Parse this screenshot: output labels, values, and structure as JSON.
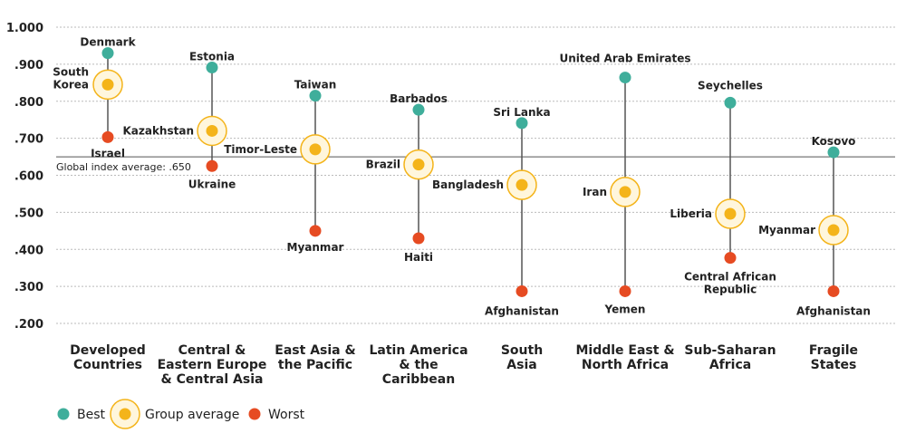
{
  "chart_data": {
    "type": "dot-range",
    "ylim": [
      0.2,
      1.0
    ],
    "yticks": [
      "1.000",
      ".900",
      ".800",
      ".700",
      ".600",
      ".500",
      ".400",
      ".300",
      ".200"
    ],
    "ytick_values": [
      1.0,
      0.9,
      0.8,
      0.7,
      0.6,
      0.5,
      0.4,
      0.3,
      0.2
    ],
    "reference_line": {
      "value": 0.65,
      "label": "Global index average: .650"
    },
    "colors": {
      "best": "#3fae9b",
      "average": "#f4b41a",
      "average_ring": "#f4b41a",
      "worst": "#e64b22",
      "line": "#555555",
      "grid": "#bbbbbb"
    },
    "groups": [
      {
        "category": [
          "Developed",
          "Countries"
        ],
        "best": {
          "name": "Denmark",
          "value": 0.93
        },
        "average": {
          "name": "South\nKorea",
          "value": 0.845
        },
        "worst": {
          "name": "Israel",
          "value": 0.703
        }
      },
      {
        "category": [
          "Central &",
          "Eastern Europe",
          "& Central Asia"
        ],
        "best": {
          "name": "Estonia",
          "value": 0.891
        },
        "average": {
          "name": "Kazakhstan",
          "value": 0.72
        },
        "worst": {
          "name": "Ukraine",
          "value": 0.625
        }
      },
      {
        "category": [
          "East Asia &",
          "the Pacific"
        ],
        "best": {
          "name": "Taiwan",
          "value": 0.815
        },
        "average": {
          "name": "Timor-Leste",
          "value": 0.67
        },
        "worst": {
          "name": "Myanmar",
          "value": 0.45
        }
      },
      {
        "category": [
          "Latin America",
          "& the",
          "Caribbean"
        ],
        "best": {
          "name": "Barbados",
          "value": 0.777
        },
        "average": {
          "name": "Brazil",
          "value": 0.629
        },
        "worst": {
          "name": "Haiti",
          "value": 0.43
        }
      },
      {
        "category": [
          "South",
          "Asia"
        ],
        "best": {
          "name": "Sri Lanka",
          "value": 0.741
        },
        "average": {
          "name": "Bangladesh",
          "value": 0.574
        },
        "worst": {
          "name": "Afghanistan",
          "value": 0.287
        }
      },
      {
        "category": [
          "Middle East &",
          "North Africa"
        ],
        "best": {
          "name": "United Arab Emirates",
          "value": 0.864
        },
        "average": {
          "name": "Iran",
          "value": 0.555
        },
        "worst": {
          "name": "Yemen",
          "value": 0.287
        }
      },
      {
        "category": [
          "Sub-Saharan",
          "Africa"
        ],
        "best": {
          "name": "Seychelles",
          "value": 0.796
        },
        "average": {
          "name": "Liberia",
          "value": 0.496
        },
        "worst": {
          "name": "Central African\nRepublic",
          "value": 0.377
        }
      },
      {
        "category": [
          "Fragile",
          "States"
        ],
        "best": {
          "name": "Kosovo",
          "value": 0.662
        },
        "average": {
          "name": "Myanmar",
          "value": 0.452
        },
        "worst": {
          "name": "Afghanistan",
          "value": 0.287
        }
      }
    ],
    "legend": [
      {
        "key": "best",
        "label": "Best"
      },
      {
        "key": "average",
        "label": "Group average"
      },
      {
        "key": "worst",
        "label": "Worst"
      }
    ]
  }
}
